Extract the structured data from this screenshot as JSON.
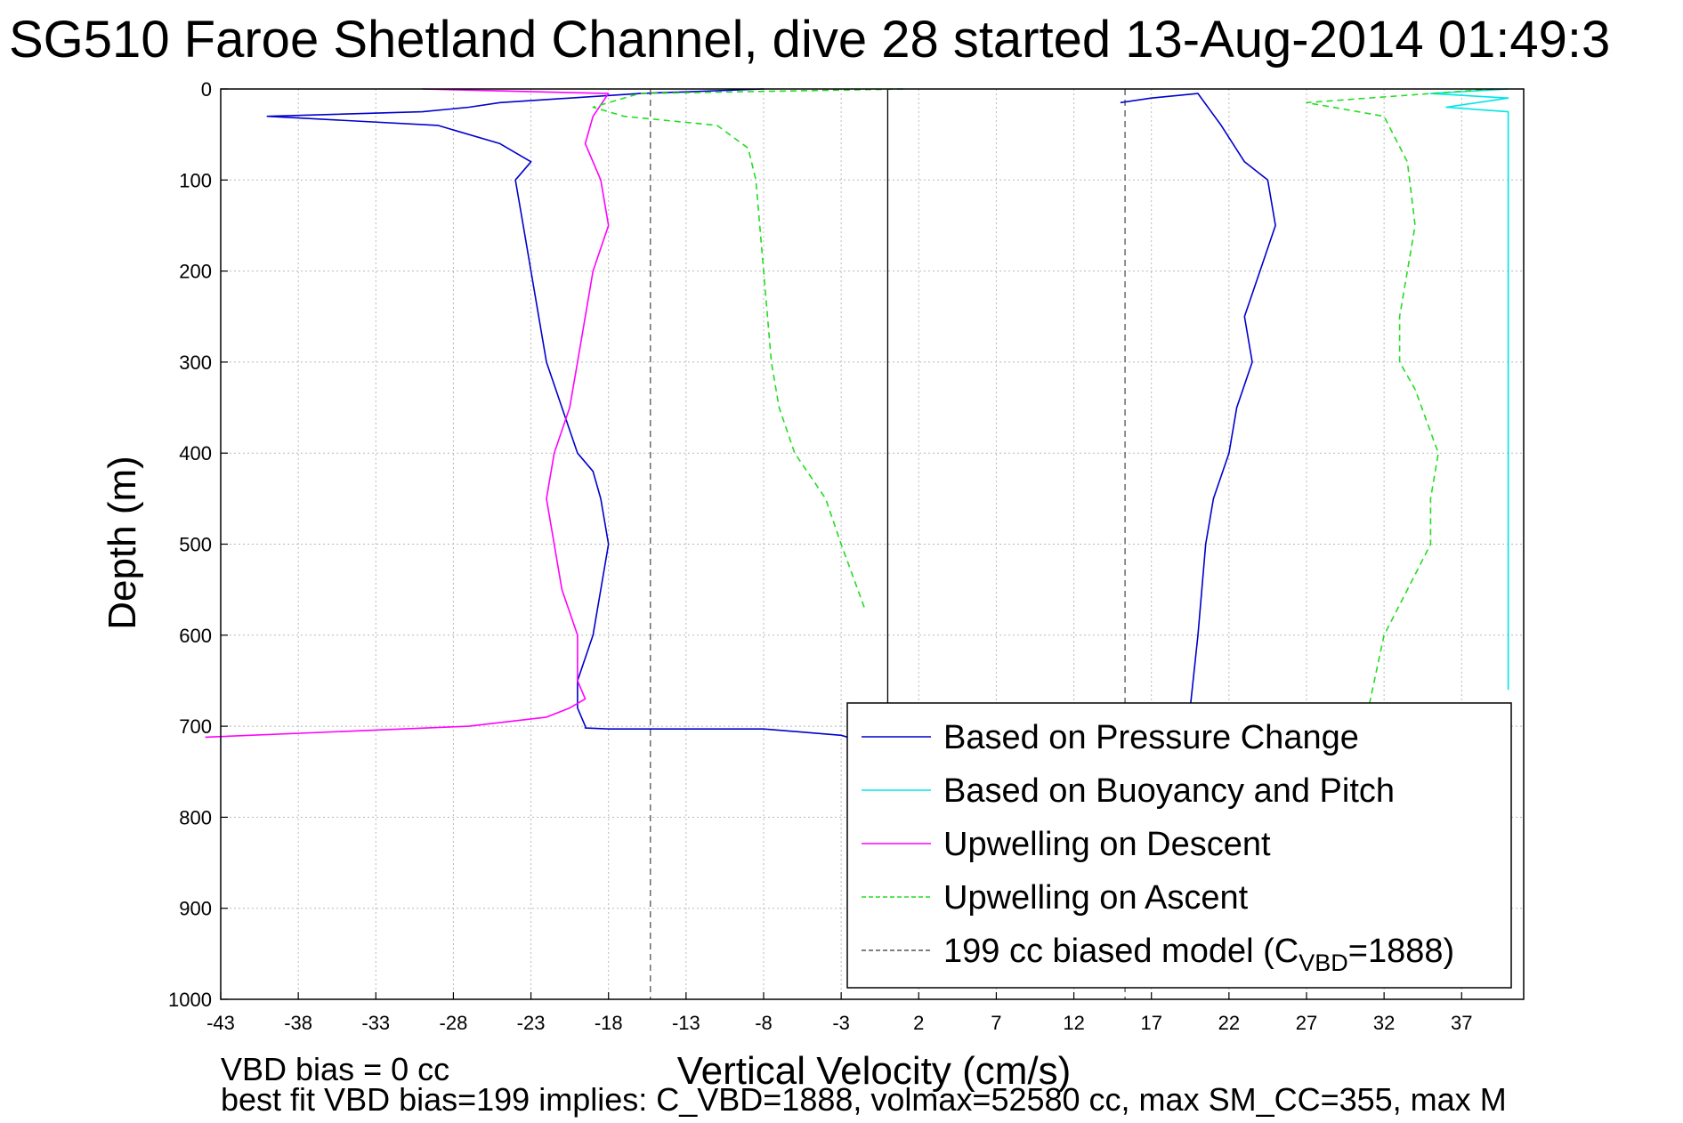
{
  "chart_data": {
    "type": "line",
    "title": "SG510 Faroe Shetland Channel, dive 28 started 13-Aug-2014 01:49:3",
    "xlabel": "Vertical Velocity (cm/s)",
    "ylabel": "Depth (m)",
    "xlim": [
      -43,
      41
    ],
    "ylim": [
      0,
      1000
    ],
    "y_reversed": true,
    "grid": true,
    "xticks": [
      -43,
      -38,
      -33,
      -28,
      -23,
      -18,
      -13,
      -8,
      -3,
      2,
      7,
      12,
      17,
      22,
      27,
      32,
      37
    ],
    "yticks": [
      0,
      100,
      200,
      300,
      400,
      500,
      600,
      700,
      800,
      900,
      1000
    ],
    "legend_position": "bottom-right",
    "series": [
      {
        "name": "Based on Pressure Change",
        "color": "#0000cc",
        "style": "solid",
        "x": [
          -8,
          -16,
          -25,
          -27,
          -30,
          -40,
          -29,
          -25,
          -23,
          -24,
          -23.5,
          -23,
          -22.5,
          -22,
          -21,
          -20,
          -19,
          -18.5,
          -18,
          -18.5,
          -19,
          -20,
          -20,
          -19.5,
          -19.5,
          -18,
          -8,
          -3,
          -2
        ],
        "y": [
          0,
          5,
          15,
          20,
          25,
          30,
          40,
          60,
          80,
          100,
          150,
          200,
          250,
          300,
          350,
          400,
          420,
          450,
          500,
          550,
          600,
          650,
          680,
          700,
          702,
          703,
          703,
          710,
          715
        ]
      },
      {
        "name": "Upwelling on Descent",
        "color": "#ff00ff",
        "style": "solid",
        "x": [
          -30,
          -18,
          -19,
          -19.5,
          -18.5,
          -18,
          -19,
          -19.5,
          -20,
          -20.5,
          -21.5,
          -22,
          -21.5,
          -21,
          -20,
          -20,
          -19.5,
          -20.5,
          -22,
          -27,
          -44
        ],
        "y": [
          0,
          5,
          30,
          60,
          100,
          150,
          200,
          250,
          300,
          350,
          400,
          450,
          500,
          550,
          600,
          650,
          670,
          680,
          690,
          700,
          712
        ]
      },
      {
        "name": "Upwelling on Ascent",
        "color": "#22dd22",
        "style": "dashed",
        "x": [
          1,
          -16,
          -19,
          -17,
          -11,
          -9,
          -8.5,
          -8,
          -7.5,
          -7,
          -6,
          -4,
          -3,
          -1.5
        ],
        "y": [
          0,
          5,
          20,
          30,
          40,
          65,
          100,
          200,
          300,
          350,
          400,
          450,
          500,
          570
        ]
      },
      {
        "name": "199 cc biased model (C_VBD=1888)",
        "color": "#555555",
        "style": "dashed",
        "x": [
          -15.3,
          -15.3
        ],
        "y": [
          0,
          1000
        ]
      }
    ],
    "right_panel_series": [
      {
        "name": "Based on Pressure Change (ascent)",
        "color": "#0000cc",
        "style": "solid",
        "x": [
          15,
          17,
          20,
          21.5,
          23,
          24.5,
          25,
          24,
          23,
          23.5,
          22.5,
          22,
          21,
          20.5,
          20,
          19.5
        ],
        "y": [
          15,
          10,
          5,
          40,
          80,
          100,
          150,
          200,
          250,
          300,
          350,
          400,
          450,
          500,
          600,
          680
        ]
      },
      {
        "name": "Based on Buoyancy and Pitch",
        "color": "#00e5e5",
        "style": "solid",
        "x": [
          40,
          35,
          40,
          36,
          40,
          40,
          40,
          40,
          40,
          40,
          40
        ],
        "y": [
          0,
          5,
          10,
          20,
          25,
          175,
          330,
          435,
          485,
          540,
          660
        ]
      },
      {
        "name": "Upwelling on Ascent (right)",
        "color": "#22dd22",
        "style": "dashed",
        "x": [
          39,
          27,
          32,
          33.5,
          34,
          33.5,
          33,
          33,
          34,
          35.5,
          35,
          35,
          33.5,
          32,
          31
        ],
        "y": [
          0,
          15,
          30,
          80,
          150,
          200,
          250,
          300,
          330,
          400,
          450,
          500,
          550,
          600,
          680
        ]
      }
    ],
    "right_reference_line": {
      "x": 15.3,
      "color": "#555555",
      "style": "dashed"
    },
    "zero_line": {
      "x": 0,
      "color": "#000000",
      "style": "solid",
      "ymax": 710
    },
    "legend": [
      {
        "label": "Based on Pressure Change",
        "color": "#0000cc",
        "style": "solid"
      },
      {
        "label": "Based on Buoyancy and Pitch",
        "color": "#00e5e5",
        "style": "solid"
      },
      {
        "label": "Upwelling on Descent",
        "color": "#ff00ff",
        "style": "solid"
      },
      {
        "label": "Upwelling on Ascent",
        "color": "#22dd22",
        "style": "dashed"
      },
      {
        "label_main": "199 cc biased model (C",
        "label_sub": "VBD",
        "label_tail": "=1888)",
        "color": "#555555",
        "style": "dashed"
      }
    ],
    "notes": [
      "VBD bias = 0 cc",
      "best fit VBD bias=199 implies: C_VBD=1888, volmax=52580 cc, max SM_CC=355, max M"
    ]
  }
}
